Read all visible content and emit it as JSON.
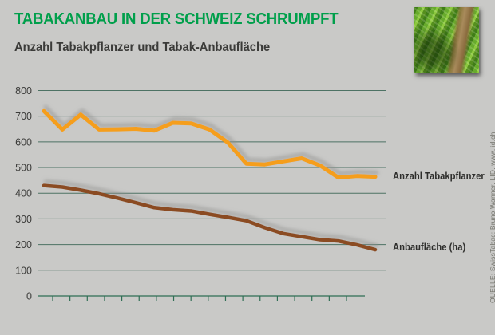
{
  "header": {
    "title": "TABAKANBAU IN DER SCHWEIZ SCHRUMPFT",
    "subtitle": "Anzahl Tabakpflanzer und Tabak-Anbaufläche"
  },
  "source_note": "QUELLE: SwissTabac; Bruno Wanner, LID, www.lid.ch",
  "photo": {
    "description": "tobacco field rows with soil path"
  },
  "colors": {
    "background": "#C9C9C7",
    "title_green": "#009F4B",
    "text_dark": "#3B3B39",
    "gridline": "#4D7264",
    "axis": "#2F6E54",
    "series_orange": "#F59E1E",
    "series_brown": "#8B4B22"
  },
  "chart_data": {
    "type": "line",
    "title": "TABAKANBAU IN DER SCHWEIZ SCHRUMPFT",
    "subtitle": "Anzahl Tabakpflanzer und Tabak-Anbaufläche",
    "xlabel": "",
    "ylabel": "",
    "ylim": [
      0,
      800
    ],
    "yticks": [
      0,
      100,
      200,
      300,
      400,
      500,
      600,
      700,
      800
    ],
    "grid": true,
    "x_axis": {
      "labels": [],
      "tick_count": 18
    },
    "legend_position": "right-of-line-end",
    "series": [
      {
        "name": "Anzahl Tabakpflanzer",
        "color": "#F59E1E",
        "values": [
          720,
          648,
          706,
          648,
          649,
          651,
          644,
          674,
          672,
          648,
          597,
          515,
          512,
          524,
          536,
          508,
          461,
          467,
          464
        ]
      },
      {
        "name": "Anbaufläche (ha)",
        "color": "#8B4B22",
        "values": [
          430,
          424,
          412,
          398,
          381,
          363,
          344,
          336,
          331,
          318,
          306,
          293,
          266,
          243,
          231,
          219,
          214,
          199,
          180
        ]
      }
    ]
  }
}
